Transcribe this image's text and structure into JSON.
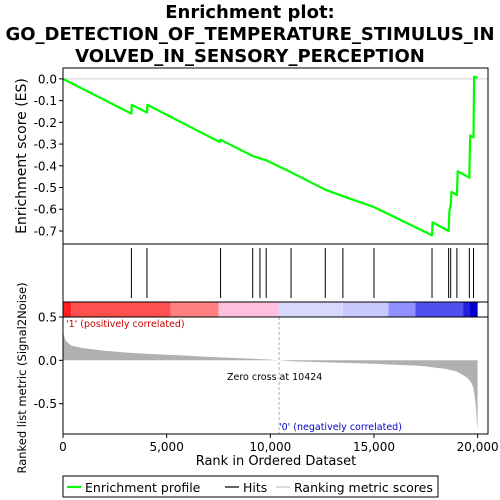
{
  "chart_data": {
    "type": "line",
    "title_lines": [
      "Enrichment plot:",
      "GO_DETECTION_OF_TEMPERATURE_STIMULUS_IN",
      "VOLVED_IN_SENSORY_PERCEPTION"
    ],
    "es_panel": {
      "ylabel": "Enrichment score (ES)",
      "ylim": [
        -0.76,
        0.05
      ],
      "yticks": [
        0.0,
        -0.1,
        -0.2,
        -0.3,
        -0.4,
        -0.5,
        -0.6,
        -0.7
      ],
      "ytick_labels": [
        "0.0",
        "-0.1",
        "-0.2",
        "-0.3",
        "-0.4",
        "-0.5",
        "-0.6",
        "-0.7"
      ],
      "line_color": "#00ff00",
      "x": [
        0,
        3300,
        3320,
        4050,
        4070,
        7550,
        7600,
        7700,
        9150,
        9800,
        11000,
        12650,
        13500,
        15000,
        17800,
        17830,
        18600,
        18640,
        18700,
        18740,
        19000,
        19040,
        19600,
        19640,
        19800,
        19830,
        20000
      ],
      "y": [
        0.0,
        -0.16,
        -0.12,
        -0.155,
        -0.12,
        -0.29,
        -0.28,
        -0.285,
        -0.355,
        -0.375,
        -0.43,
        -0.51,
        -0.54,
        -0.59,
        -0.72,
        -0.66,
        -0.7,
        -0.61,
        -0.58,
        -0.52,
        -0.535,
        -0.425,
        -0.455,
        -0.26,
        -0.27,
        0.01,
        0.005
      ]
    },
    "hits": {
      "positions": [
        3300,
        4050,
        7600,
        9150,
        9500,
        9800,
        11000,
        12650,
        13500,
        15000,
        17800,
        18600,
        18700,
        19000,
        19600,
        19800
      ]
    },
    "rank_bar": {
      "positive_label": "'1' (positively correlated)",
      "negative_label": "'0' (negatively correlated)",
      "positive_color": "#cc0000",
      "negative_color": "#0000cc",
      "segments": [
        {
          "start": 0,
          "end": 400,
          "color": "#ff2020"
        },
        {
          "start": 400,
          "end": 5200,
          "color": "#ff5050"
        },
        {
          "start": 5200,
          "end": 7500,
          "color": "#ff8080"
        },
        {
          "start": 7500,
          "end": 10400,
          "color": "#ffc0e0"
        },
        {
          "start": 10400,
          "end": 13500,
          "color": "#d8d8ff"
        },
        {
          "start": 13500,
          "end": 15700,
          "color": "#c8c8ff"
        },
        {
          "start": 15700,
          "end": 17000,
          "color": "#9090ff"
        },
        {
          "start": 17000,
          "end": 19300,
          "color": "#5050ee"
        },
        {
          "start": 19300,
          "end": 19600,
          "color": "#2020dd"
        },
        {
          "start": 19600,
          "end": 20000,
          "color": "#0000cc"
        }
      ]
    },
    "metric_panel": {
      "ylabel": "Ranked list metric (Signal2Noise)",
      "ylim": [
        -0.85,
        0.5
      ],
      "yticks": [
        0.5,
        0.0,
        -0.5
      ],
      "ytick_labels": [
        "0.5",
        "0.0",
        "-0.5"
      ],
      "zero_cross_label": "Zero cross at 10424",
      "zero_cross": 10424,
      "fill_color": "#b0b0b0",
      "x": [
        0,
        50,
        150,
        400,
        1000,
        2000,
        3000,
        4000,
        5000,
        6000,
        7000,
        8000,
        9000,
        10000,
        10424,
        11000,
        12000,
        13000,
        14000,
        15000,
        16000,
        17000,
        17500,
        18000,
        18500,
        19000,
        19300,
        19500,
        19700,
        19800,
        19850,
        19900,
        19950,
        20000
      ],
      "y": [
        0.35,
        0.28,
        0.22,
        0.17,
        0.14,
        0.11,
        0.09,
        0.075,
        0.065,
        0.055,
        0.04,
        0.03,
        0.02,
        0.008,
        0.0,
        -0.01,
        -0.018,
        -0.025,
        -0.032,
        -0.04,
        -0.05,
        -0.06,
        -0.07,
        -0.085,
        -0.1,
        -0.13,
        -0.17,
        -0.2,
        -0.26,
        -0.32,
        -0.4,
        -0.5,
        -0.65,
        -0.82
      ]
    },
    "xaxis": {
      "xlabel": "Rank in Ordered Dataset",
      "xlim": [
        0,
        20500
      ],
      "xticks": [
        0,
        5000,
        10000,
        15000,
        20000
      ],
      "xtick_labels": [
        "0",
        "5,000",
        "10,000",
        "15,000",
        "20,000"
      ]
    },
    "legend": {
      "placement": "bottom",
      "items": [
        {
          "label": "Enrichment profile",
          "color": "#00ff00"
        },
        {
          "label": "Hits",
          "color": "#000000"
        },
        {
          "label": "Ranking metric scores",
          "color": "#c0c0c0"
        }
      ]
    }
  }
}
